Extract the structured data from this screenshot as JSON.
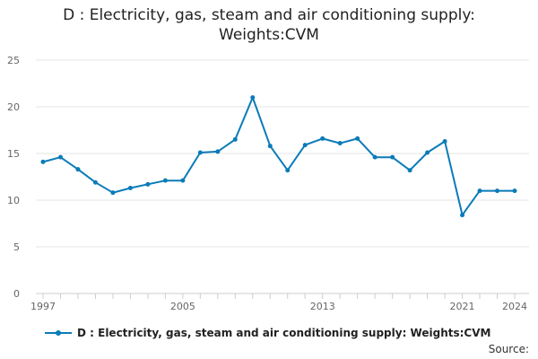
{
  "title_line1": "D : Electricity, gas, steam and air conditioning supply:",
  "title_line2": "Weights:CVM",
  "source_label": "Source:",
  "colors": {
    "series": "#0b7bb8",
    "grid": "#e6e6e6",
    "axis": "#cccccc",
    "tick_text": "#666666"
  },
  "chart_data": {
    "type": "line",
    "title": "D : Electricity, gas, steam and air conditioning supply: Weights:CVM",
    "xlabel": "",
    "ylabel": "",
    "ylim": [
      0,
      25
    ],
    "yticks": [
      0,
      5,
      10,
      15,
      20,
      25
    ],
    "x_tick_labels": [
      "1997",
      "2005",
      "2013",
      "2021",
      "2024"
    ],
    "grid": true,
    "legend_position": "bottom",
    "x": [
      1997,
      1998,
      1999,
      2000,
      2001,
      2002,
      2003,
      2004,
      2005,
      2006,
      2007,
      2008,
      2009,
      2010,
      2011,
      2012,
      2013,
      2014,
      2015,
      2016,
      2017,
      2018,
      2019,
      2020,
      2021,
      2022,
      2023,
      2024
    ],
    "series": [
      {
        "name": "D : Electricity, gas, steam and air conditioning supply: Weights:CVM",
        "values": [
          14.1,
          14.6,
          13.3,
          11.9,
          10.8,
          11.3,
          11.7,
          12.1,
          12.1,
          15.1,
          15.2,
          16.5,
          21.0,
          15.8,
          13.2,
          15.9,
          16.6,
          16.1,
          16.6,
          14.6,
          14.6,
          13.2,
          15.1,
          16.3,
          8.4,
          11.0,
          11.0,
          11.0
        ]
      }
    ]
  }
}
